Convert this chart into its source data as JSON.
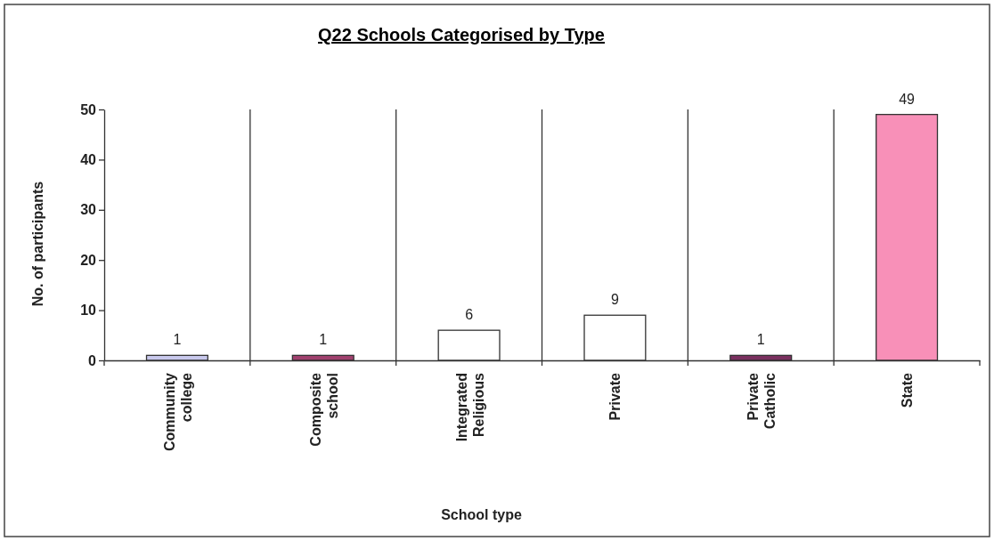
{
  "chart_data": {
    "type": "bar",
    "title": "Q22 Schools Categorised by Type",
    "xlabel": "School type",
    "ylabel": "No. of participants",
    "categories": [
      "Community college",
      "Composite school",
      "Integrated Religious",
      "Private",
      "Private Catholic",
      "State"
    ],
    "values": [
      1,
      1,
      6,
      9,
      1,
      49
    ],
    "colors": [
      "#c8c8ec",
      "#a0406e",
      "#ffffff",
      "#ffffff",
      "#7a3060",
      "#f890b8"
    ],
    "ylim": [
      0,
      50
    ],
    "yticks": [
      0,
      10,
      20,
      30,
      40,
      50
    ],
    "grid": "x",
    "data_labels": true
  }
}
